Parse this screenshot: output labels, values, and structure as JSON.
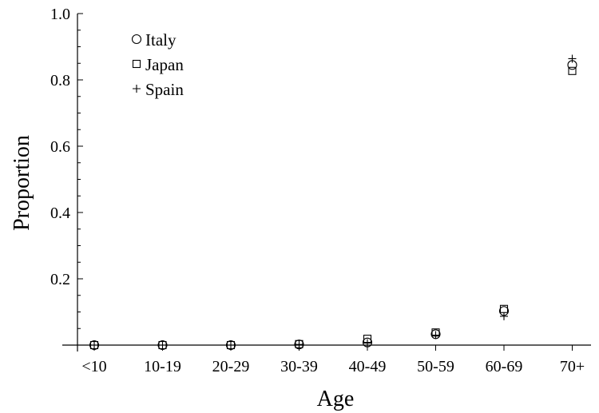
{
  "chart_data": {
    "type": "scatter",
    "title": "",
    "xlabel": "Age",
    "ylabel": "Proportion",
    "categories": [
      "<10",
      "10-19",
      "20-29",
      "30-39",
      "40-49",
      "50-59",
      "60-69",
      "70+"
    ],
    "ylim": [
      0,
      1.0
    ],
    "yticks": [
      0.2,
      0.4,
      0.6,
      0.8,
      1.0
    ],
    "ytick_labels": [
      "0.2",
      "0.4",
      "0.6",
      "0.8",
      "1.0"
    ],
    "grid": false,
    "legend_position": "top-left",
    "series": [
      {
        "name": "Italy",
        "marker": "circle",
        "values": [
          0.0,
          0.0,
          0.0,
          0.002,
          0.008,
          0.033,
          0.103,
          0.845
        ]
      },
      {
        "name": "Japan",
        "marker": "square",
        "values": [
          0.0,
          0.0,
          0.0,
          0.003,
          0.019,
          0.038,
          0.109,
          0.827
        ]
      },
      {
        "name": "Spain",
        "marker": "plus",
        "values": [
          0.0,
          0.0,
          0.0,
          0.002,
          0.006,
          0.03,
          0.087,
          0.864
        ]
      }
    ]
  }
}
